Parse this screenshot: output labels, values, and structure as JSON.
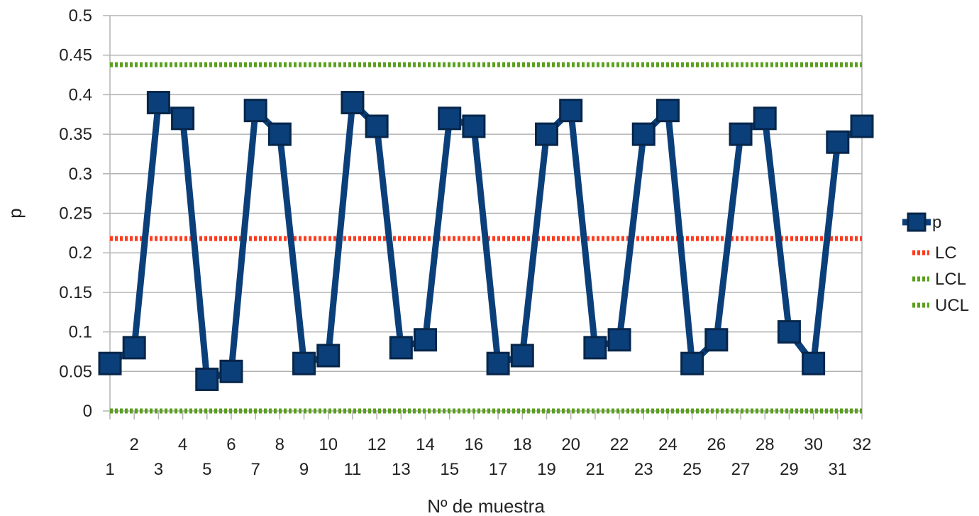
{
  "chart_data": {
    "type": "line",
    "xlabel": "Nº de muestra",
    "ylabel": "p",
    "ylim": [
      0,
      0.5
    ],
    "yticks": [
      "0",
      "0.05",
      "0.1",
      "0.15",
      "0.2",
      "0.25",
      "0.3",
      "0.35",
      "0.4",
      "0.45",
      "0.5"
    ],
    "categories": [
      "1",
      "2",
      "3",
      "4",
      "5",
      "6",
      "7",
      "8",
      "9",
      "10",
      "11",
      "12",
      "13",
      "14",
      "15",
      "16",
      "17",
      "18",
      "19",
      "20",
      "21",
      "22",
      "23",
      "24",
      "25",
      "26",
      "27",
      "28",
      "29",
      "30",
      "31",
      "32"
    ],
    "grid": true,
    "legend_position": "right",
    "series": [
      {
        "name": "p",
        "style": "line-markers",
        "color": "#0b3f7a",
        "values": [
          0.06,
          0.08,
          0.39,
          0.37,
          0.04,
          0.05,
          0.38,
          0.35,
          0.06,
          0.07,
          0.39,
          0.36,
          0.08,
          0.09,
          0.37,
          0.36,
          0.06,
          0.07,
          0.35,
          0.38,
          0.08,
          0.09,
          0.35,
          0.38,
          0.06,
          0.09,
          0.35,
          0.37,
          0.1,
          0.06,
          0.34,
          0.36
        ]
      },
      {
        "name": "LC",
        "style": "dotted",
        "color": "#ff3b1f",
        "constant": 0.218
      },
      {
        "name": "LCL",
        "style": "dotted",
        "color": "#5aa01e",
        "constant": 0
      },
      {
        "name": "UCL",
        "style": "dotted",
        "color": "#5aa01e",
        "constant": 0.438
      }
    ]
  }
}
